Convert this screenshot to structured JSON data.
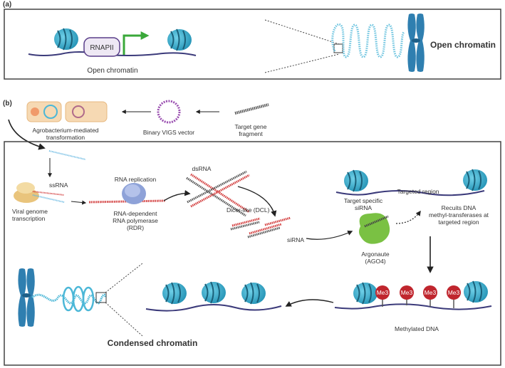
{
  "panel_a": {
    "tag": "(a)",
    "rnapii": "RNAPII",
    "open_chromatin_caption": "Open chromatin",
    "open_chromatin_title": "Open chromatin"
  },
  "panel_b": {
    "tag": "(b)",
    "agro": "Agrobacterium-mediated transformation",
    "agro_line1": "Agrobacterium-mediated",
    "agro_line2": "transformation",
    "binary_vector": "Binary VIGS vector",
    "target_gene_line1": "Target gene",
    "target_gene_line2": "fragment",
    "ssrna": "ssRNA",
    "viral_line1": "Viral genome",
    "viral_line2": "transcription",
    "rna_replication": "RNA replication",
    "rdr_line1": "RNA-dependent",
    "rdr_line2": "RNA polymerase",
    "rdr_line3": "(RDR)",
    "dsrna": "dsRNA",
    "dicer": "Dicer-like (DCL)",
    "sirna": "siRNA",
    "target_specific_line1": "Target specific",
    "target_specific_line2": "siRNA",
    "argonaute_line1": "Argonaute",
    "argonaute_line2": "(AGO4)",
    "recruits_line1": "Recuits DNA",
    "recruits_line2": "methyl-transferases at",
    "recruits_line3": "targeted region",
    "targeted_region": "Targeted region",
    "me3": "Me3",
    "methylated_dna": "Methylated DNA",
    "condensed_chromatin": "Condensed chromatin"
  },
  "colors": {
    "nucleosome": "#2fa8c8",
    "dna": "#3b3a7a",
    "frame": "#333333",
    "arrow_green": "#3aa83a",
    "rna_red": "#d23b3b",
    "me3_red": "#c0262e",
    "argonaute": "#7ac143"
  }
}
